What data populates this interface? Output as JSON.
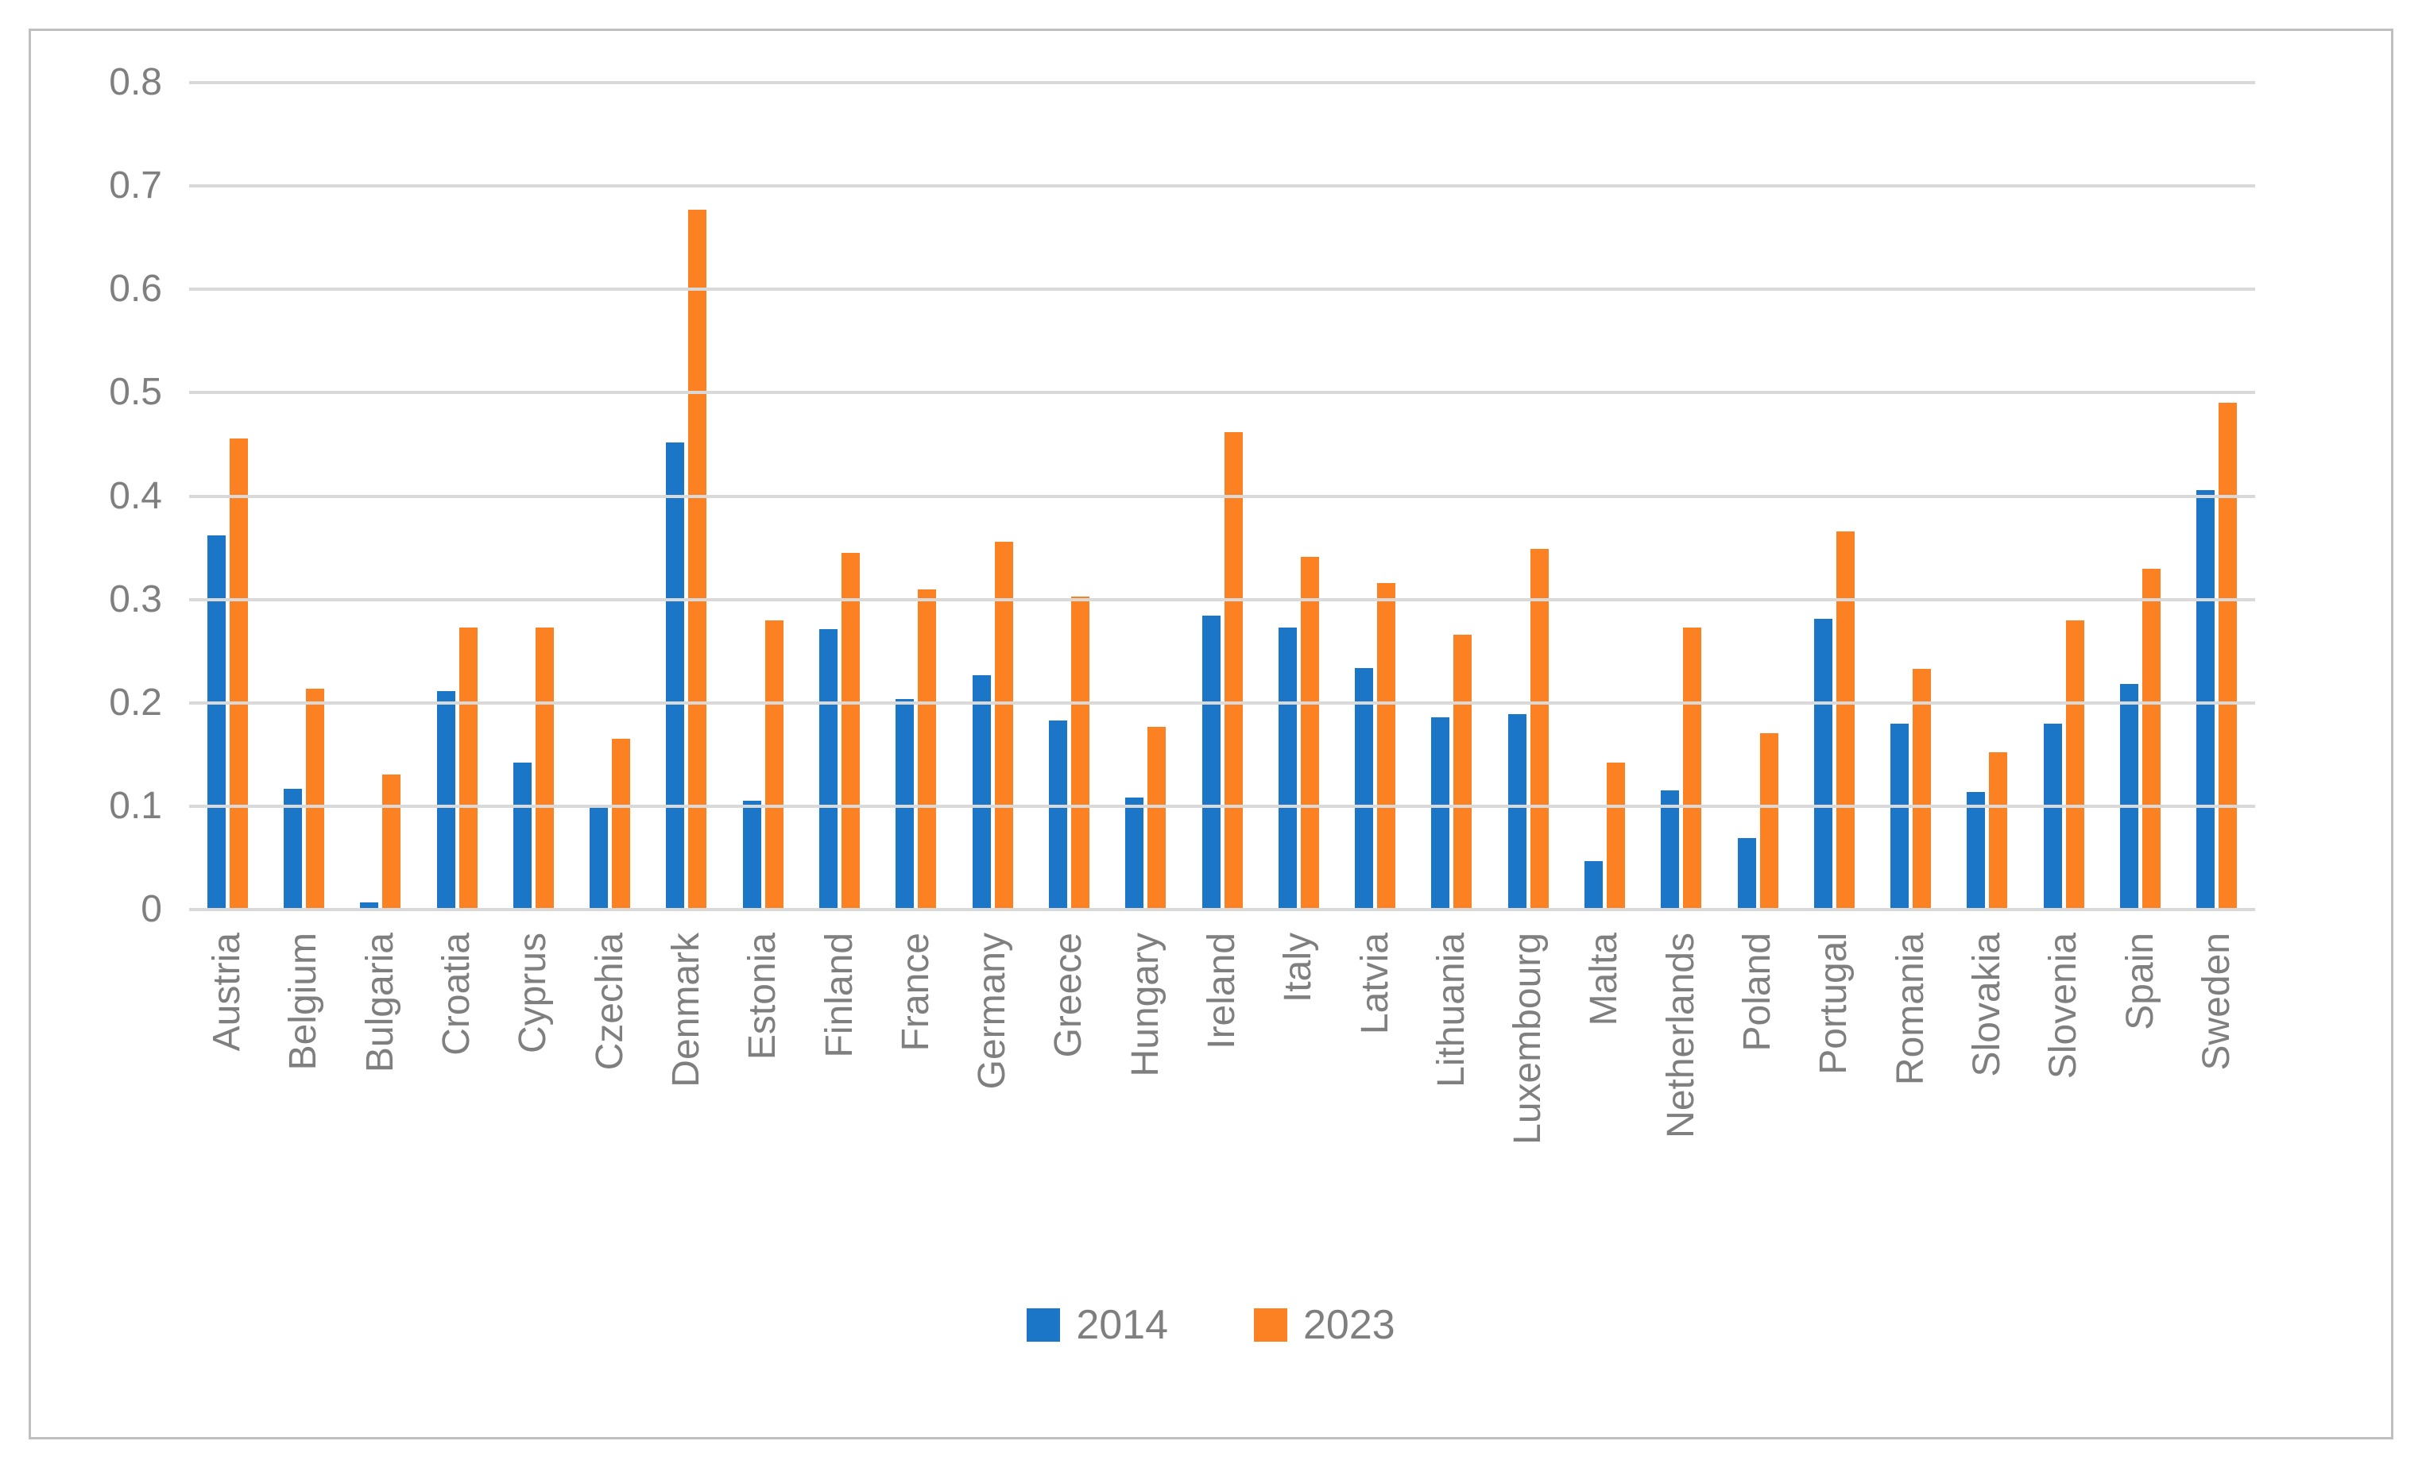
{
  "chart_data": {
    "type": "bar",
    "title": "",
    "xlabel": "",
    "ylabel": "",
    "categories": [
      "Austria",
      "Belgium",
      "Bulgaria",
      "Croatia",
      "Cyprus",
      "Czechia",
      "Denmark",
      "Estonia",
      "Finland",
      "France",
      "Germany",
      "Greece",
      "Hungary",
      "Ireland",
      "Italy",
      "Latvia",
      "Lithuania",
      "Luxembourg",
      "Malta",
      "Netherlands",
      "Poland",
      "Portugal",
      "Romania",
      "Slovakia",
      "Slovenia",
      "Spain",
      "Sweden"
    ],
    "series": [
      {
        "name": "2014",
        "color": "#1C76C8",
        "values": [
          0.362,
          0.117,
          0.007,
          0.211,
          0.142,
          0.1,
          0.452,
          0.105,
          0.271,
          0.204,
          0.227,
          0.183,
          0.108,
          0.284,
          0.273,
          0.234,
          0.186,
          0.189,
          0.047,
          0.115,
          0.069,
          0.281,
          0.18,
          0.114,
          0.18,
          0.218,
          0.406
        ]
      },
      {
        "name": "2023",
        "color": "#FB8122",
        "values": [
          0.456,
          0.214,
          0.131,
          0.273,
          0.273,
          0.165,
          0.677,
          0.28,
          0.345,
          0.31,
          0.356,
          0.303,
          0.177,
          0.462,
          0.341,
          0.316,
          0.266,
          0.349,
          0.142,
          0.273,
          0.171,
          0.366,
          0.233,
          0.152,
          0.28,
          0.33,
          0.49
        ]
      }
    ],
    "ylim": [
      0,
      0.8
    ],
    "yticks": [
      0,
      0.1,
      0.2,
      0.3,
      0.4,
      0.5,
      0.6,
      0.7,
      0.8
    ],
    "ytick_labels": [
      "0",
      "0.1",
      "0.2",
      "0.3",
      "0.4",
      "0.5",
      "0.6",
      "0.7",
      "0.8"
    ],
    "grid": true,
    "legend_position": "bottom",
    "gridline_color": "#D9D9D9",
    "axis_text_color": "#7F7F7F",
    "frame_color": "#BFBFBF"
  },
  "legend": {
    "items": [
      {
        "label": "2014",
        "color": "#1C76C8"
      },
      {
        "label": "2023",
        "color": "#FB8122"
      }
    ]
  }
}
